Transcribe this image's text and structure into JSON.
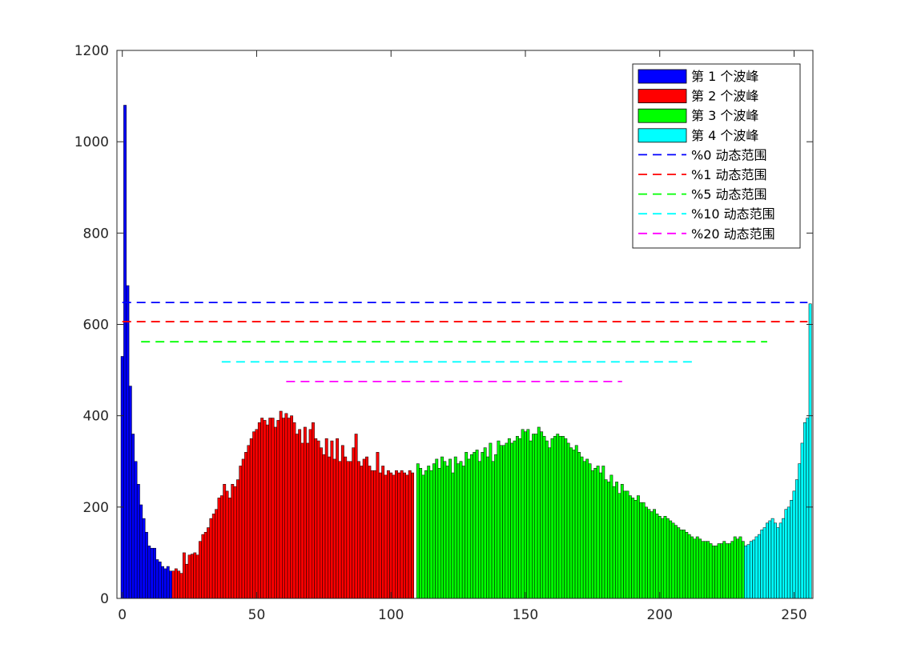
{
  "chart_data": {
    "type": "bar",
    "title": "",
    "xlabel": "",
    "ylabel": "",
    "xlim": [
      -2,
      257
    ],
    "ylim": [
      0,
      1200
    ],
    "xticks": [
      0,
      50,
      100,
      150,
      200,
      250
    ],
    "yticks": [
      0,
      200,
      400,
      600,
      800,
      1000,
      1200
    ],
    "grid": false,
    "legend_position": "top-right",
    "series": [
      {
        "name": "第 1 个波峰",
        "color": "#0000ff",
        "start": 0,
        "values": [
          530,
          1080,
          685,
          465,
          360,
          300,
          250,
          205,
          175,
          145,
          115,
          110,
          110,
          85,
          80,
          70,
          65,
          70,
          60
        ]
      },
      {
        "name": "第 2 个波峰",
        "color": "#ff0000",
        "start": 19,
        "values": [
          60,
          65,
          60,
          55,
          100,
          75,
          95,
          97,
          100,
          95,
          125,
          140,
          145,
          155,
          175,
          185,
          195,
          220,
          225,
          250,
          235,
          220,
          250,
          245,
          260,
          290,
          305,
          320,
          335,
          350,
          365,
          370,
          385,
          395,
          390,
          380,
          395,
          395,
          375,
          390,
          410,
          395,
          405,
          395,
          400,
          385,
          360,
          370,
          340,
          375,
          340,
          370,
          385,
          350,
          345,
          330,
          315,
          350,
          310,
          345,
          305,
          350,
          300,
          335,
          310,
          300,
          300,
          330,
          360,
          300,
          290,
          305,
          310,
          290,
          280,
          280,
          320,
          275,
          290,
          270,
          280,
          275,
          270,
          280,
          275,
          280,
          275,
          270,
          280,
          275
        ]
      },
      {
        "name": "第 3 个波峰",
        "color": "#00ff00",
        "start": 110,
        "values": [
          295,
          285,
          270,
          280,
          290,
          280,
          295,
          305,
          285,
          310,
          300,
          290,
          305,
          275,
          310,
          295,
          300,
          290,
          320,
          305,
          315,
          320,
          325,
          300,
          320,
          330,
          310,
          340,
          300,
          315,
          345,
          335,
          335,
          340,
          350,
          340,
          345,
          355,
          350,
          370,
          365,
          370,
          345,
          360,
          360,
          375,
          365,
          355,
          345,
          330,
          350,
          355,
          360,
          355,
          355,
          350,
          340,
          330,
          325,
          335,
          320,
          310,
          300,
          305,
          295,
          280,
          285,
          290,
          275,
          290,
          260,
          255,
          270,
          245,
          255,
          230,
          250,
          235,
          235,
          225,
          220,
          215,
          225,
          210,
          210,
          200,
          195,
          190,
          195,
          185,
          180,
          175,
          180,
          175,
          170,
          165,
          160,
          155,
          150,
          150,
          145,
          140,
          135,
          130,
          135,
          130,
          125,
          125,
          125,
          120,
          115,
          115,
          120,
          120,
          125,
          120,
          120,
          125,
          135,
          130,
          135,
          125
        ]
      },
      {
        "name": "第 4 个波峰",
        "color": "#00ffff",
        "start": 232,
        "values": [
          115,
          118,
          125,
          128,
          135,
          140,
          150,
          155,
          165,
          170,
          175,
          165,
          155,
          165,
          175,
          195,
          200,
          215,
          235,
          260,
          295,
          340,
          385,
          395,
          645
        ]
      }
    ],
    "lines": [
      {
        "name": "%0 动态范围",
        "color": "#0000ff",
        "y": 648,
        "x": [
          0,
          255
        ]
      },
      {
        "name": "%1 动态范围",
        "color": "#ff0000",
        "y": 606,
        "x": [
          0,
          255
        ]
      },
      {
        "name": "%5 动态范围",
        "color": "#00ff00",
        "y": 562,
        "x": [
          7,
          240
        ]
      },
      {
        "name": "%10 动态范围",
        "color": "#00ffff",
        "y": 518,
        "x": [
          37,
          214
        ]
      },
      {
        "name": "%20 动态范围",
        "color": "#ff00ff",
        "y": 475,
        "x": [
          61,
          186
        ]
      }
    ]
  }
}
